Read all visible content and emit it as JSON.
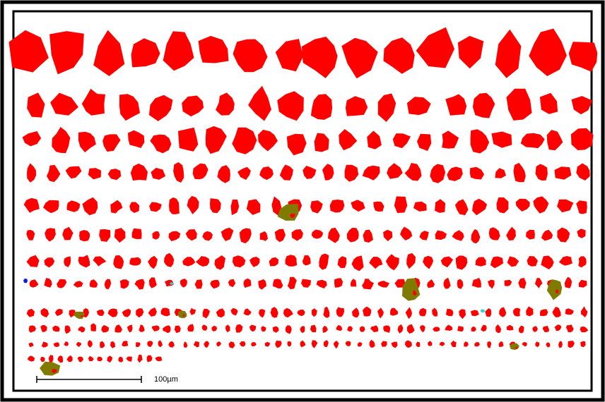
{
  "scale_bar": {
    "label": "100µm"
  }
}
